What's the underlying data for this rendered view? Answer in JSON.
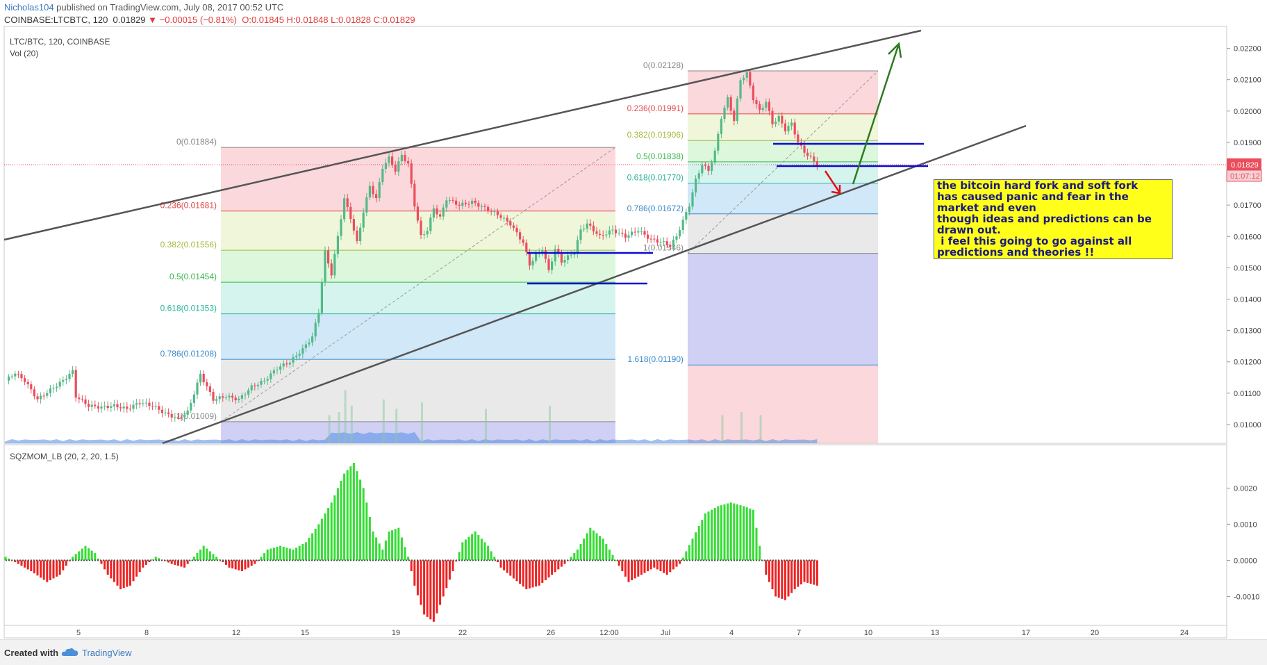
{
  "header": {
    "user": "Nicholas104",
    "published": " published on TradingView.com, July 08, 2017 00:52 UTC",
    "symbol": "COINBASE:LTCBTC, 120",
    "last": "0.01829",
    "change": "−0.00015 (−0.81%)",
    "ohlc": "O:0.01845  H:0.01848  L:0.01828  C:0.01829"
  },
  "panes": {
    "main_label": "LTC/BTC, 120, COINBASE",
    "vol_label": "Vol (20)",
    "osc_label": "SQZMOM_LB (20, 2, 20, 1.5)"
  },
  "note": "the bitcoin hard fork and soft fork\nhas caused panic and fear in the\nmarket and even\nthough ideas and predictions can be\ndrawn out.\n i feel this going to go against all\npredictions and theories !!",
  "footer": {
    "created": "Created with",
    "brand": "TradingView"
  },
  "colors": {
    "up": "#53b987",
    "down": "#eb4d5c",
    "trend": "#555555",
    "blue_line": "#0a0ad4",
    "arrow_green": "#2d7a1f",
    "arrow_red": "#e01010",
    "osc_up": "#33dd33",
    "osc_down": "#ee2222",
    "price_tag": "#eb4d5c"
  },
  "chart_data": {
    "type": "candlestick",
    "price_axis": {
      "ticks": [
        "0.02200",
        "0.02100",
        "0.02000",
        "0.01900",
        "0.01800",
        "0.01700",
        "0.01600",
        "0.01500",
        "0.01400",
        "0.01300",
        "0.01200",
        "0.01100",
        "0.01000"
      ],
      "min": 0.0094,
      "max": 0.0227
    },
    "x_axis_labels": [
      "5",
      "8",
      "12",
      "15",
      "19",
      "22",
      "26",
      "12:00",
      "Jul",
      "4",
      "7",
      "10",
      "13",
      "17",
      "20",
      "24"
    ],
    "last_price": "0.01829",
    "countdown": "01:07:12",
    "price_path": [
      [
        0,
        0.0114
      ],
      [
        3,
        0.01165
      ],
      [
        6,
        0.0114
      ],
      [
        10,
        0.0108
      ],
      [
        14,
        0.0111
      ],
      [
        18,
        0.0114
      ],
      [
        21,
        0.0117
      ],
      [
        22,
        0.0109
      ],
      [
        26,
        0.0106
      ],
      [
        30,
        0.01055
      ],
      [
        34,
        0.0106
      ],
      [
        38,
        0.0105
      ],
      [
        42,
        0.0107
      ],
      [
        46,
        0.0106
      ],
      [
        50,
        0.01035
      ],
      [
        54,
        0.0102
      ],
      [
        57,
        0.0104
      ],
      [
        61,
        0.0116
      ],
      [
        65,
        0.0108
      ],
      [
        69,
        0.0109
      ],
      [
        73,
        0.0108
      ],
      [
        77,
        0.0112
      ],
      [
        81,
        0.0114
      ],
      [
        85,
        0.0118
      ],
      [
        89,
        0.012
      ],
      [
        93,
        0.0124
      ],
      [
        96,
        0.0128
      ],
      [
        98,
        0.0136
      ],
      [
        100,
        0.0155
      ],
      [
        102,
        0.0148
      ],
      [
        104,
        0.016
      ],
      [
        106,
        0.0172
      ],
      [
        108,
        0.0166
      ],
      [
        110,
        0.0158
      ],
      [
        112,
        0.0168
      ],
      [
        114,
        0.0176
      ],
      [
        116,
        0.0172
      ],
      [
        118,
        0.0182
      ],
      [
        120,
        0.0185
      ],
      [
        122,
        0.0181
      ],
      [
        124,
        0.0186
      ],
      [
        126,
        0.0183
      ],
      [
        128,
        0.017
      ],
      [
        130,
        0.016
      ],
      [
        132,
        0.0162
      ],
      [
        134,
        0.0169
      ],
      [
        136,
        0.0166
      ],
      [
        138,
        0.0172
      ],
      [
        140,
        0.0171
      ],
      [
        142,
        0.017
      ],
      [
        146,
        0.0171
      ],
      [
        150,
        0.0169
      ],
      [
        154,
        0.0167
      ],
      [
        158,
        0.0164
      ],
      [
        162,
        0.0158
      ],
      [
        164,
        0.0151
      ],
      [
        166,
        0.0154
      ],
      [
        168,
        0.0156
      ],
      [
        170,
        0.0149
      ],
      [
        172,
        0.0156
      ],
      [
        174,
        0.0152
      ],
      [
        178,
        0.0155
      ],
      [
        180,
        0.0162
      ],
      [
        182,
        0.0164
      ],
      [
        184,
        0.0162
      ],
      [
        186,
        0.016
      ],
      [
        190,
        0.0162
      ],
      [
        194,
        0.016
      ],
      [
        198,
        0.0162
      ],
      [
        202,
        0.0159
      ],
      [
        206,
        0.0158
      ],
      [
        208,
        0.0157
      ],
      [
        210,
        0.016
      ],
      [
        212,
        0.0165
      ],
      [
        214,
        0.017
      ],
      [
        216,
        0.0178
      ],
      [
        218,
        0.0183
      ],
      [
        220,
        0.0181
      ],
      [
        222,
        0.0187
      ],
      [
        224,
        0.0198
      ],
      [
        226,
        0.0204
      ],
      [
        228,
        0.0197
      ],
      [
        230,
        0.021
      ],
      [
        232,
        0.0212
      ],
      [
        234,
        0.0204
      ],
      [
        236,
        0.02
      ],
      [
        238,
        0.0203
      ],
      [
        240,
        0.0196
      ],
      [
        242,
        0.0198
      ],
      [
        244,
        0.0194
      ],
      [
        246,
        0.0196
      ],
      [
        248,
        0.019
      ],
      [
        250,
        0.0187
      ],
      [
        252,
        0.0185
      ],
      [
        254,
        0.0183
      ]
    ],
    "volume_peaks": [
      [
        101,
        0.0103
      ],
      [
        104,
        0.0104
      ],
      [
        106,
        0.0111
      ],
      [
        108,
        0.0106
      ],
      [
        118,
        0.0108
      ],
      [
        122,
        0.0105
      ],
      [
        130,
        0.0107
      ],
      [
        150,
        0.0105
      ],
      [
        170,
        0.0106
      ],
      [
        224,
        0.0103
      ],
      [
        230,
        0.0104
      ],
      [
        236,
        0.0103
      ]
    ],
    "squeeze_momentum": [
      [
        0,
        0.0001
      ],
      [
        4,
        -0.0001
      ],
      [
        8,
        -0.0003
      ],
      [
        13,
        -0.0006
      ],
      [
        17,
        -0.0004
      ],
      [
        21,
        0.0001
      ],
      [
        25,
        0.0004
      ],
      [
        28,
        0.0002
      ],
      [
        32,
        -0.0004
      ],
      [
        36,
        -0.0008
      ],
      [
        39,
        -0.0007
      ],
      [
        43,
        -0.0002
      ],
      [
        47,
        0.0001
      ],
      [
        52,
        -0.0001
      ],
      [
        56,
        -0.0002
      ],
      [
        62,
        0.0004
      ],
      [
        66,
        0.0001
      ],
      [
        70,
        -0.0002
      ],
      [
        74,
        -0.0003
      ],
      [
        78,
        -0.0001
      ],
      [
        82,
        0.0003
      ],
      [
        86,
        0.0004
      ],
      [
        90,
        0.0003
      ],
      [
        94,
        0.0005
      ],
      [
        98,
        0.001
      ],
      [
        102,
        0.0016
      ],
      [
        106,
        0.0024
      ],
      [
        109,
        0.0027
      ],
      [
        112,
        0.002
      ],
      [
        115,
        0.0008
      ],
      [
        118,
        0.0003
      ],
      [
        120,
        0.0008
      ],
      [
        123,
        0.0009
      ],
      [
        126,
        0.0001
      ],
      [
        128,
        -0.0007
      ],
      [
        131,
        -0.0015
      ],
      [
        134,
        -0.0017
      ],
      [
        137,
        -0.001
      ],
      [
        140,
        -0.0003
      ],
      [
        143,
        0.0005
      ],
      [
        147,
        0.0008
      ],
      [
        151,
        0.0004
      ],
      [
        155,
        -0.0002
      ],
      [
        159,
        -0.0005
      ],
      [
        163,
        -0.0008
      ],
      [
        167,
        -0.0007
      ],
      [
        171,
        -0.0004
      ],
      [
        175,
        -0.0001
      ],
      [
        179,
        0.0003
      ],
      [
        183,
        0.0009
      ],
      [
        187,
        0.0006
      ],
      [
        191,
        0.0
      ],
      [
        195,
        -0.0006
      ],
      [
        199,
        -0.0004
      ],
      [
        203,
        -0.0002
      ],
      [
        207,
        -0.0004
      ],
      [
        211,
        -0.0001
      ],
      [
        215,
        0.0006
      ],
      [
        219,
        0.0013
      ],
      [
        223,
        0.0015
      ],
      [
        227,
        0.0016
      ],
      [
        231,
        0.0015
      ],
      [
        234,
        0.0014
      ],
      [
        236,
        0.0004
      ],
      [
        238,
        -0.0004
      ],
      [
        241,
        -0.001
      ],
      [
        244,
        -0.0011
      ],
      [
        247,
        -0.0008
      ],
      [
        250,
        -0.0006
      ],
      [
        254,
        -0.0007
      ]
    ],
    "osc_axis": {
      "ticks": [
        "0.0020",
        "0.0010",
        "0.0000",
        "-0.0010"
      ],
      "min": -0.0018,
      "max": 0.0032
    },
    "fib_left": {
      "levels": [
        {
          "label": "0(0.01884)",
          "price": 0.01884,
          "color": "#888888",
          "fill": "rgba(235,77,92,0.22)"
        },
        {
          "label": "0.236(0.01681)",
          "price": 0.01681,
          "color": "#e24a4a",
          "fill": "rgba(210,230,150,0.35)"
        },
        {
          "label": "0.382(0.01556)",
          "price": 0.01556,
          "color": "#a6b93b",
          "fill": "rgba(140,230,140,0.30)"
        },
        {
          "label": "0.5(0.01454)",
          "price": 0.01454,
          "color": "#3bb84a",
          "fill": "rgba(120,220,200,0.30)"
        },
        {
          "label": "0.618(0.01353)",
          "price": 0.01353,
          "color": "#2bb39b",
          "fill": "rgba(120,190,235,0.35)"
        },
        {
          "label": "0.786(0.01208)",
          "price": 0.01208,
          "color": "#3a89c9",
          "fill": "rgba(200,200,200,0.40)"
        },
        {
          "label": "1(0.01009)",
          "price": 0.01009,
          "color": "#888888",
          "fill": "rgba(150,150,230,0.45)"
        }
      ]
    },
    "fib_right": {
      "levels": [
        {
          "label": "0(0.02128)",
          "price": 0.02128,
          "color": "#888888",
          "fill": "rgba(235,77,92,0.22)"
        },
        {
          "label": "0.236(0.01991)",
          "price": 0.01991,
          "color": "#e24a4a",
          "fill": "rgba(210,230,150,0.35)"
        },
        {
          "label": "0.382(0.01906)",
          "price": 0.01906,
          "color": "#a6b93b",
          "fill": "rgba(140,230,140,0.30)"
        },
        {
          "label": "0.5(0.01838)",
          "price": 0.01838,
          "color": "#3bb84a",
          "fill": "rgba(120,220,200,0.30)"
        },
        {
          "label": "0.618(0.01770)",
          "price": 0.0177,
          "color": "#2bb39b",
          "fill": "rgba(120,190,235,0.35)"
        },
        {
          "label": "0.786(0.01672)",
          "price": 0.01672,
          "color": "#3a89c9",
          "fill": "rgba(200,200,200,0.40)"
        },
        {
          "label": "1(0.01546)",
          "price": 0.01546,
          "color": "#888888",
          "fill": "rgba(150,150,230,0.45)"
        },
        {
          "label": "1.618(0.01190)",
          "price": 0.0119,
          "color": "#3a89c9",
          "fill": "rgba(235,77,92,0.22)"
        }
      ]
    }
  }
}
